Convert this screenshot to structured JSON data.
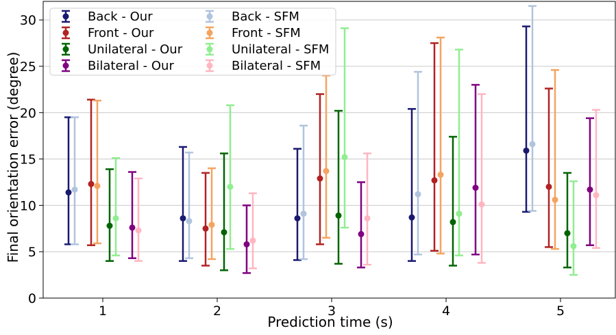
{
  "chart_data": {
    "type": "errorbar",
    "xlabel": "Prediction time (s)",
    "ylabel": "Final orientation error (degree)",
    "categories": [
      "1",
      "2",
      "3",
      "4",
      "5"
    ],
    "ylim": [
      0,
      32
    ],
    "yticks": [
      0,
      5,
      10,
      15,
      20,
      25,
      30
    ],
    "grid": "horizontal",
    "legend_position": "top-left",
    "series": [
      {
        "name": "Back - Our",
        "color": "#191970",
        "mean": [
          11.4,
          8.6,
          8.6,
          8.7,
          15.9
        ],
        "lower": [
          5.8,
          4.0,
          4.1,
          4.0,
          9.3
        ],
        "upper": [
          19.5,
          16.3,
          16.1,
          20.4,
          29.3
        ]
      },
      {
        "name": "Back - SFM",
        "color": "#b0c4de",
        "mean": [
          11.7,
          8.3,
          9.1,
          11.2,
          16.6
        ],
        "lower": [
          5.8,
          4.3,
          4.2,
          4.7,
          9.4
        ],
        "upper": [
          19.5,
          15.7,
          18.6,
          24.4,
          31.5
        ]
      },
      {
        "name": "Front - Our",
        "color": "#b22222",
        "mean": [
          12.3,
          7.5,
          12.9,
          12.7,
          12.0
        ],
        "lower": [
          5.7,
          3.5,
          5.8,
          5.1,
          5.5
        ],
        "upper": [
          21.4,
          13.5,
          22.0,
          27.5,
          22.6
        ]
      },
      {
        "name": "Front - SFM",
        "color": "#f4a460",
        "mean": [
          12.1,
          7.9,
          13.7,
          13.3,
          10.6
        ],
        "lower": [
          5.9,
          4.2,
          6.5,
          4.8,
          5.3
        ],
        "upper": [
          21.3,
          14.0,
          24.0,
          28.1,
          24.6
        ]
      },
      {
        "name": "Unilateral - Our",
        "color": "#006400",
        "mean": [
          7.8,
          7.1,
          8.9,
          8.2,
          7.0
        ],
        "lower": [
          4.0,
          3.0,
          3.7,
          3.5,
          3.3
        ],
        "upper": [
          13.9,
          15.6,
          20.2,
          17.4,
          13.5
        ]
      },
      {
        "name": "Unilateral - SFM",
        "color": "#90ee90",
        "mean": [
          8.6,
          12.0,
          15.2,
          9.1,
          5.6
        ],
        "lower": [
          4.6,
          5.3,
          7.6,
          4.6,
          2.5
        ],
        "upper": [
          15.1,
          20.8,
          29.1,
          26.8,
          12.6
        ]
      },
      {
        "name": "Bilateral - Our",
        "color": "#800080",
        "mean": [
          7.6,
          5.8,
          6.9,
          11.9,
          11.7
        ],
        "lower": [
          4.3,
          2.7,
          3.3,
          4.7,
          5.7
        ],
        "upper": [
          13.6,
          10.0,
          12.5,
          23.0,
          19.4
        ]
      },
      {
        "name": "Bilateral - SFM",
        "color": "#ffb6c1",
        "mean": [
          7.3,
          6.2,
          8.6,
          10.1,
          11.1
        ],
        "lower": [
          4.0,
          3.2,
          3.6,
          3.8,
          5.4
        ],
        "upper": [
          12.9,
          11.3,
          15.6,
          22.0,
          20.3
        ]
      }
    ]
  }
}
